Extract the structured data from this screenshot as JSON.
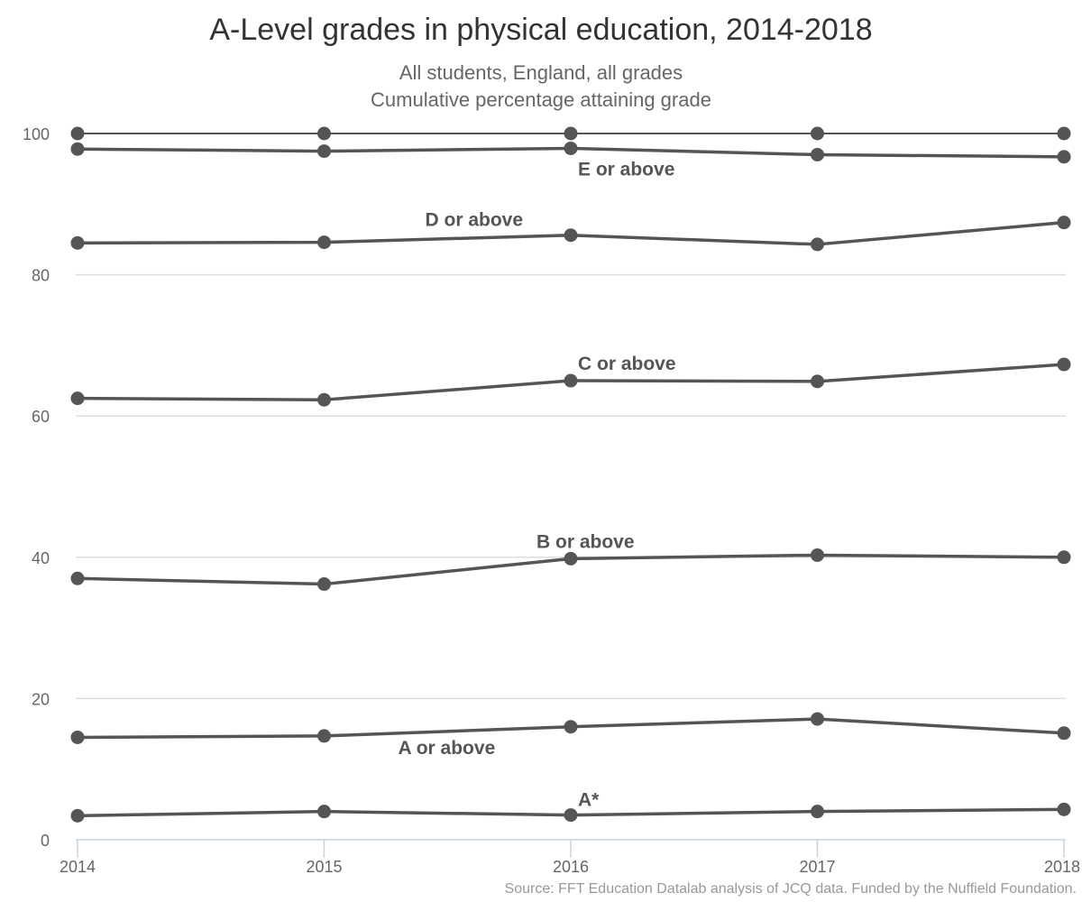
{
  "title": "A-Level grades in physical education, 2014-2018",
  "subtitle_line1": "All students, England, all grades",
  "subtitle_line2": "Cumulative percentage attaining grade",
  "source": "Source: FFT Education Datalab analysis of JCQ data. Funded by the Nuffield Foundation.",
  "colors": {
    "line": "#555555",
    "grid": "#dddddd",
    "axis": "#c8d3e0",
    "text": "#666666"
  },
  "chart_data": {
    "type": "line",
    "x": [
      "2014",
      "2015",
      "2016",
      "2017",
      "2018"
    ],
    "ylim": [
      0,
      100
    ],
    "yticks": [
      0,
      20,
      40,
      60,
      80,
      100
    ],
    "grid": true,
    "legend": "none (direct labels)",
    "series": [
      {
        "name": "",
        "values": [
          100,
          100,
          100,
          100,
          100
        ]
      },
      {
        "name": "E or above",
        "values": [
          97.8,
          97.5,
          97.9,
          97.0,
          96.7
        ]
      },
      {
        "name": "D or above",
        "values": [
          84.5,
          84.6,
          85.6,
          84.3,
          87.4
        ]
      },
      {
        "name": "C or above",
        "values": [
          62.5,
          62.3,
          65.0,
          64.9,
          67.3
        ]
      },
      {
        "name": "B or above",
        "values": [
          37.0,
          36.2,
          39.8,
          40.3,
          40.0
        ]
      },
      {
        "name": "A or above",
        "values": [
          14.5,
          14.7,
          16.0,
          17.1,
          15.1
        ]
      },
      {
        "name": "A*",
        "values": [
          3.4,
          4.0,
          3.5,
          4.0,
          4.3
        ]
      }
    ]
  }
}
